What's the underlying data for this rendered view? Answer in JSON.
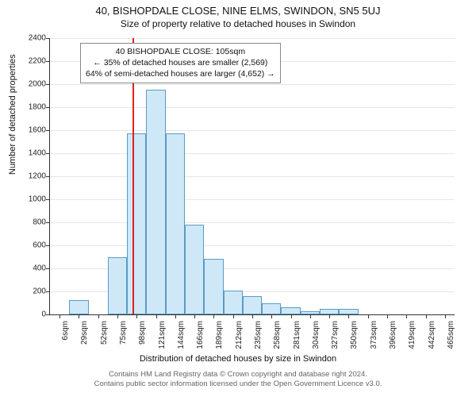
{
  "title": "40, BISHOPDALE CLOSE, NINE ELMS, SWINDON, SN5 5UJ",
  "subtitle": "Size of property relative to detached houses in Swindon",
  "chart": {
    "type": "histogram",
    "ylabel": "Number of detached properties",
    "xlabel": "Distribution of detached houses by size in Swindon",
    "ylim": [
      0,
      2400
    ],
    "ytick_step": 200,
    "plot_bg": "#ffffff",
    "grid_color": "#e6e6e6",
    "categories": [
      "6sqm",
      "29sqm",
      "52sqm",
      "75sqm",
      "98sqm",
      "121sqm",
      "144sqm",
      "166sqm",
      "189sqm",
      "212sqm",
      "235sqm",
      "258sqm",
      "281sqm",
      "304sqm",
      "327sqm",
      "350sqm",
      "373sqm",
      "396sqm",
      "419sqm",
      "442sqm",
      "465sqm"
    ],
    "values": [
      0,
      125,
      0,
      500,
      1575,
      1950,
      1575,
      780,
      480,
      210,
      160,
      100,
      60,
      30,
      45,
      45,
      0,
      0,
      0,
      0,
      0
    ],
    "bar_fill": "#cfe8f7",
    "bar_stroke": "#5a9bc4",
    "marker_x_index": 4.3,
    "marker_color": "#e02020",
    "annotation": {
      "line1": "40 BISHOPDALE CLOSE: 105sqm",
      "line2": "← 35% of detached houses are smaller (2,569)",
      "line3": "64% of semi-detached houses are larger (4,652) →"
    },
    "label_fontsize": 11,
    "tick_fontsize": 10
  },
  "footer": {
    "line1": "Contains HM Land Registry data © Crown copyright and database right 2024.",
    "line2": "Contains public sector information licensed under the Open Government Licence v3.0."
  }
}
